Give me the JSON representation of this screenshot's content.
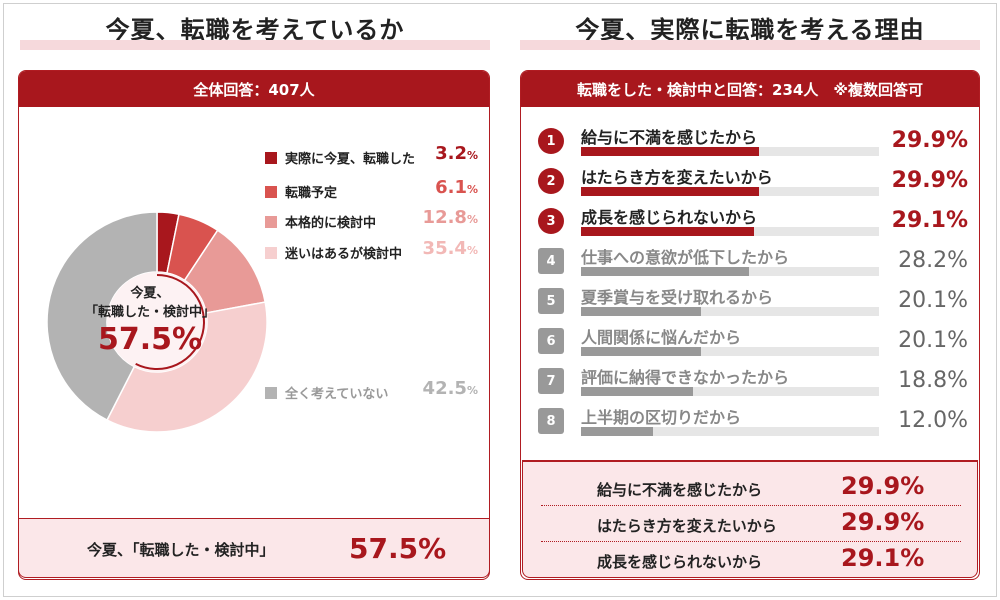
{
  "left_panel": {
    "title": "今夏、転職を考えているか",
    "header": "全体回答：407人",
    "center_line1": "今夏、",
    "center_line2": "「転職した・検討中」",
    "center_value": "57.5%",
    "footer_label": "今夏、「転職した・検討中」",
    "footer_value": "57.5%"
  },
  "right_panel": {
    "title": "今夏、実際に転職を考える理由",
    "header": "転職をした・検討中と回答：234人　※複数回答可",
    "summary": [
      {
        "label": "給与に不満を感じたから",
        "value": "29.9%"
      },
      {
        "label": "はたらき方を変えたいから",
        "value": "29.9%"
      },
      {
        "label": "成長を感じられないから",
        "value": "29.1%"
      }
    ]
  },
  "chart_data": [
    {
      "type": "pie",
      "categories": [
        "実際に今夏、転職した",
        "転職予定",
        "本格的に検討中",
        "迷いはあるが検討中",
        "全く考えていない"
      ],
      "values": [
        3.2,
        6.1,
        12.8,
        35.4,
        42.5
      ],
      "value_labels": [
        "3.2",
        "6.1",
        "12.8",
        "35.4",
        "42.5"
      ],
      "unit": "%",
      "colors": [
        "#a8171d",
        "#d9534f",
        "#e89a97",
        "#f6cfcf",
        "#b3b3b3"
      ]
    },
    {
      "type": "bar",
      "categories": [
        "給与に不満を感じたから",
        "はたらき方を変えたいから",
        "成長を感じられないから",
        "仕事への意欲が低下したから",
        "夏季賞与を受け取れるから",
        "人間関係に悩んだから",
        "評価に納得できなかったから",
        "上半期の区切りだから"
      ],
      "ranks": [
        "1",
        "2",
        "3",
        "4",
        "5",
        "6",
        "7",
        "8"
      ],
      "values": [
        29.9,
        29.9,
        29.1,
        28.2,
        20.1,
        20.1,
        18.8,
        12.0
      ],
      "value_labels": [
        "29.9%",
        "29.9%",
        "29.1%",
        "28.2%",
        "20.1%",
        "20.1%",
        "18.8%",
        "12.0%"
      ],
      "highlight_count": 3,
      "colors": {
        "highlight": "#a8171d",
        "normal": "#999999"
      }
    }
  ]
}
